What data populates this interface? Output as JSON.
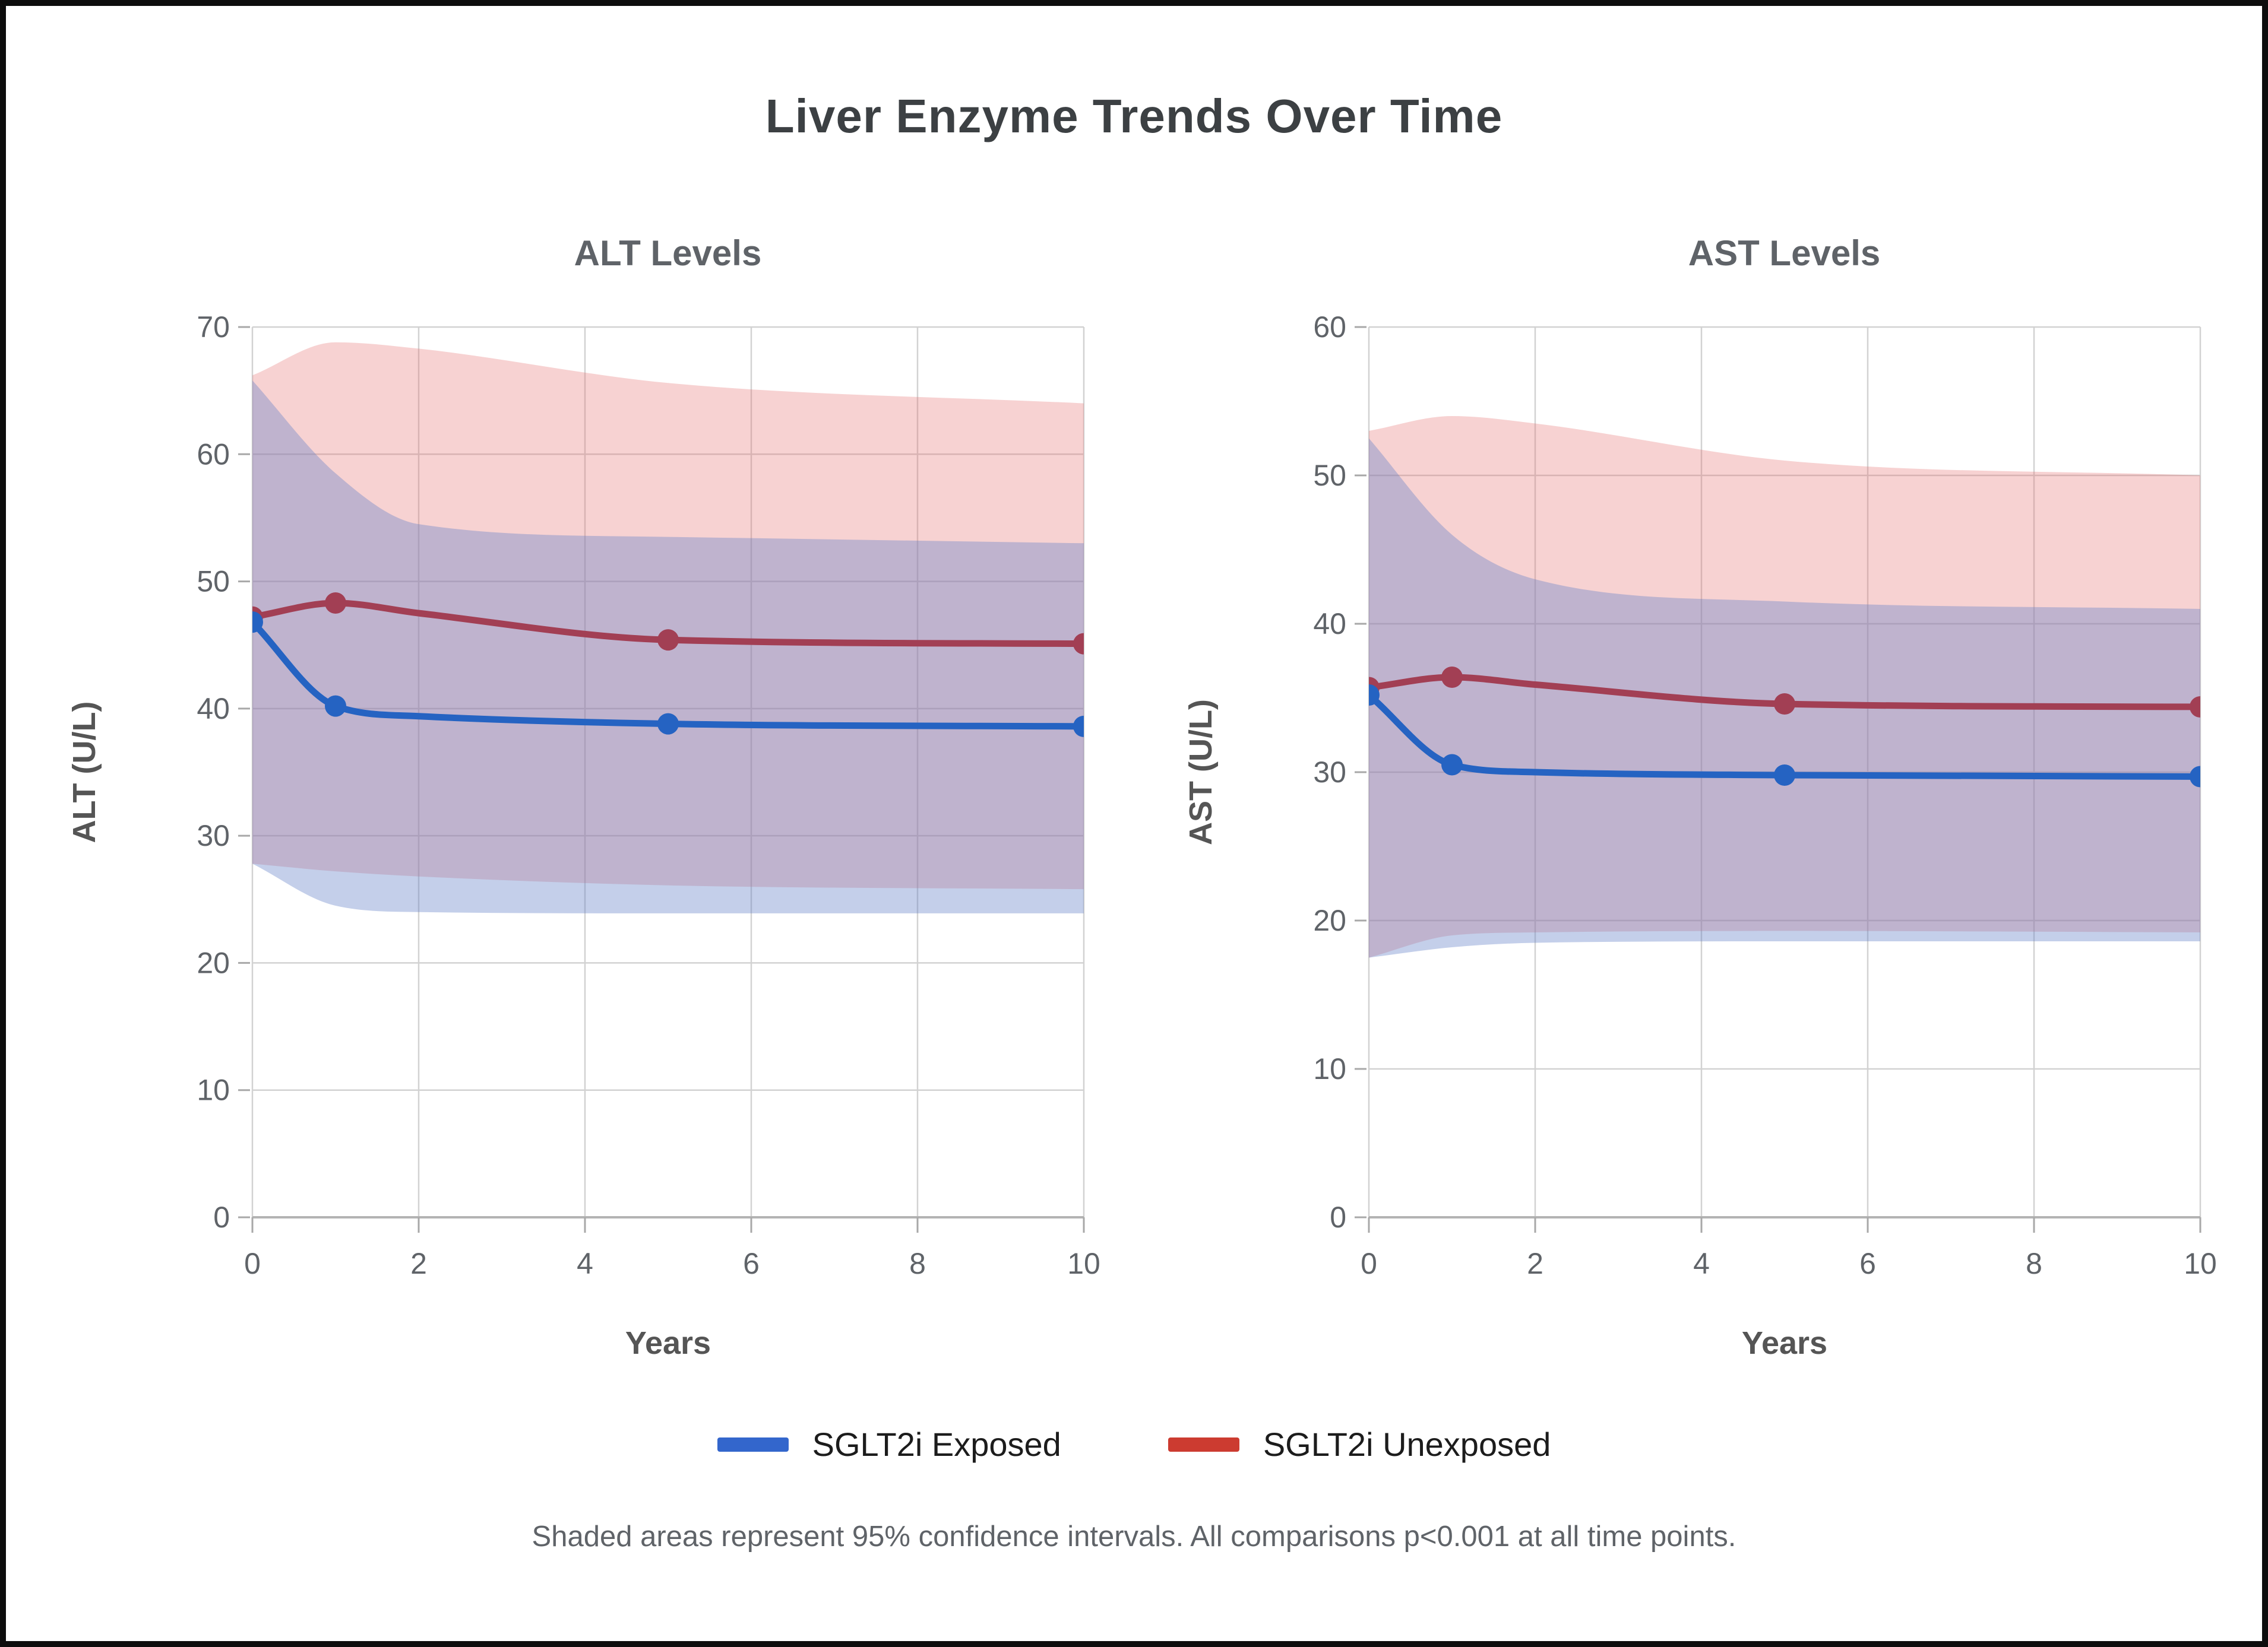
{
  "page": {
    "title": "Liver Enzyme Trends Over Time",
    "footnote": "Shaded areas represent 95% confidence intervals. All comparisons p<0.001 at all time points."
  },
  "legend": [
    {
      "label": "SGLT2i Exposed",
      "color": "#3366cc"
    },
    {
      "label": "SGLT2i Unexposed",
      "color": "#cc3b30"
    }
  ],
  "style_colors": {
    "exposed_line": "#2563c2",
    "unexposed_line": "#a23f54",
    "exposed_band_fill": "rgba(100,130,200,0.38)",
    "unexposed_band_fill": "rgba(229,115,115,0.32)",
    "grid": "#d2d2d2",
    "baseline": "#b3b3b3",
    "tick_text": "#5f6368",
    "axis_label_text": "#555555"
  },
  "chart_data": [
    {
      "type": "line",
      "title": "ALT Levels",
      "xlabel": "Years",
      "ylabel": "ALT (U/L)",
      "xlim": [
        0,
        10
      ],
      "ylim": [
        0,
        70
      ],
      "xticks": [
        0,
        2,
        4,
        6,
        8,
        10
      ],
      "yticks": [
        0,
        10,
        20,
        30,
        40,
        50,
        60,
        70
      ],
      "grid": true,
      "legend_position": "below-figure",
      "x": [
        0,
        1,
        2,
        5,
        10
      ],
      "marker_x": [
        0,
        1,
        5,
        10
      ],
      "series": [
        {
          "name": "SGLT2i Unexposed",
          "values": [
            47.2,
            48.3,
            47.5,
            45.4,
            45.1
          ],
          "ci_upper": [
            66.2,
            68.8,
            68.3,
            65.6,
            64.0
          ],
          "ci_lower": [
            27.8,
            27.2,
            26.8,
            26.1,
            25.8
          ]
        },
        {
          "name": "SGLT2i Exposed",
          "values": [
            46.8,
            40.2,
            39.4,
            38.8,
            38.6
          ],
          "ci_upper": [
            65.8,
            58.5,
            54.5,
            53.5,
            53.0
          ],
          "ci_lower": [
            27.8,
            24.5,
            24.0,
            23.9,
            23.9
          ]
        }
      ]
    },
    {
      "type": "line",
      "title": "AST Levels",
      "xlabel": "Years",
      "ylabel": "AST (U/L)",
      "xlim": [
        0,
        10
      ],
      "ylim": [
        0,
        60
      ],
      "xticks": [
        0,
        2,
        4,
        6,
        8,
        10
      ],
      "yticks": [
        0,
        10,
        20,
        30,
        40,
        50,
        60
      ],
      "grid": true,
      "legend_position": "below-figure",
      "x": [
        0,
        1,
        2,
        5,
        10
      ],
      "marker_x": [
        0,
        1,
        5,
        10
      ],
      "series": [
        {
          "name": "SGLT2i Unexposed",
          "values": [
            35.7,
            36.4,
            35.9,
            34.6,
            34.4
          ],
          "ci_upper": [
            53.0,
            54.0,
            53.5,
            51.0,
            50.0
          ],
          "ci_lower": [
            17.5,
            19.0,
            19.2,
            19.3,
            19.2
          ]
        },
        {
          "name": "SGLT2i Exposed",
          "values": [
            35.2,
            30.5,
            30.0,
            29.8,
            29.7
          ],
          "ci_upper": [
            52.5,
            46.0,
            43.0,
            41.5,
            41.0
          ],
          "ci_lower": [
            17.5,
            18.2,
            18.5,
            18.6,
            18.6
          ]
        }
      ]
    }
  ]
}
